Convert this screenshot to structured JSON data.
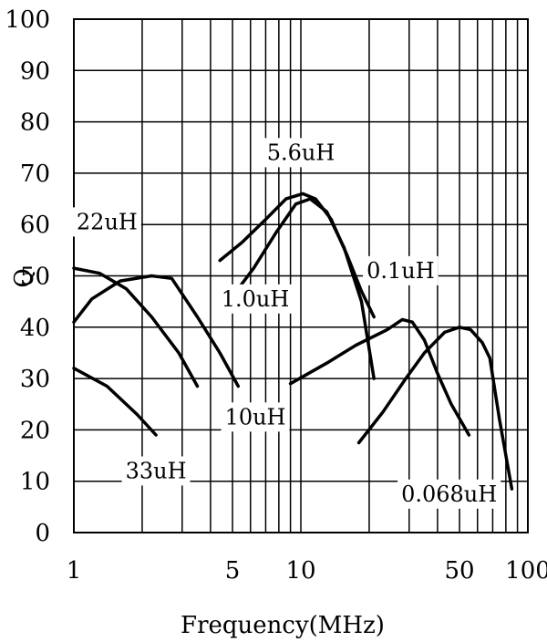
{
  "chart_data": {
    "type": "line",
    "xlabel": "Frequency(MHz)",
    "ylabel": "Q",
    "x_scale": "log",
    "xlim": [
      1,
      100
    ],
    "ylim": [
      0,
      100
    ],
    "grid": true,
    "x_ticks": [
      1,
      2,
      3,
      4,
      5,
      6,
      7,
      8,
      9,
      10,
      20,
      30,
      40,
      50,
      60,
      70,
      80,
      90,
      100
    ],
    "x_tick_labels": [
      {
        "value": 1,
        "label": "1"
      },
      {
        "value": 5,
        "label": "5"
      },
      {
        "value": 10,
        "label": "10"
      },
      {
        "value": 50,
        "label": "50"
      },
      {
        "value": 100,
        "label": "100"
      }
    ],
    "y_ticks": [
      0,
      10,
      20,
      30,
      40,
      50,
      60,
      70,
      80,
      90,
      100
    ],
    "y_tick_labels": [
      "0",
      "10",
      "20",
      "30",
      "40",
      "50",
      "60",
      "70",
      "80",
      "90",
      "100"
    ],
    "series": [
      {
        "name": "33uH",
        "label_pos": [
          2.3,
          12
        ],
        "points": [
          [
            1,
            32
          ],
          [
            1.4,
            28.5
          ],
          [
            1.9,
            23
          ],
          [
            2.3,
            19
          ]
        ]
      },
      {
        "name": "22uH",
        "label_pos": [
          1.4,
          60.5
        ],
        "points": [
          [
            1,
            51.5
          ],
          [
            1.3,
            50.5
          ],
          [
            1.7,
            47.5
          ],
          [
            2.2,
            42
          ],
          [
            2.9,
            35
          ],
          [
            3.5,
            28.5
          ]
        ]
      },
      {
        "name": "10uH",
        "label_pos": [
          6.3,
          22.5
        ],
        "points": [
          [
            1,
            41
          ],
          [
            1.2,
            45.5
          ],
          [
            1.6,
            49
          ],
          [
            2.2,
            50
          ],
          [
            2.7,
            49.5
          ],
          [
            3.5,
            42
          ],
          [
            4.4,
            35
          ],
          [
            5.3,
            28.5
          ]
        ]
      },
      {
        "name": "1.0uH",
        "label_pos": [
          6.3,
          45.5
        ],
        "points": [
          [
            5,
            46
          ],
          [
            6.2,
            51.5
          ],
          [
            7.8,
            58.5
          ],
          [
            9.5,
            64
          ],
          [
            11,
            65
          ],
          [
            13,
            62.5
          ],
          [
            15.5,
            55.5
          ],
          [
            18.5,
            45
          ],
          [
            21,
            30
          ]
        ]
      },
      {
        "name": "5.6uH",
        "label_pos": [
          10,
          74
        ],
        "points": [
          [
            4.4,
            53
          ],
          [
            5.5,
            56.5
          ],
          [
            7,
            61
          ],
          [
            8.6,
            65
          ],
          [
            10.2,
            66
          ],
          [
            11.6,
            65
          ],
          [
            13.6,
            61
          ],
          [
            16,
            54
          ],
          [
            18.5,
            47
          ],
          [
            21,
            42
          ]
        ]
      },
      {
        "name": "0.1uH",
        "label_pos": [
          27.5,
          51
        ],
        "points": [
          [
            9,
            29
          ],
          [
            13,
            33
          ],
          [
            17.5,
            36.5
          ],
          [
            24,
            39.5
          ],
          [
            28,
            41.5
          ],
          [
            31,
            41
          ],
          [
            35,
            37.5
          ],
          [
            40,
            31
          ],
          [
            46,
            25
          ],
          [
            55,
            19
          ]
        ]
      },
      {
        "name": "0.068uH",
        "label_pos": [
          45,
          7.5
        ],
        "points": [
          [
            18,
            17.5
          ],
          [
            23,
            23.5
          ],
          [
            29,
            30
          ],
          [
            35,
            35
          ],
          [
            43,
            39
          ],
          [
            50,
            40
          ],
          [
            56,
            39.5
          ],
          [
            63,
            37
          ],
          [
            68,
            34
          ],
          [
            75,
            22
          ],
          [
            85,
            8.5
          ]
        ]
      }
    ]
  }
}
